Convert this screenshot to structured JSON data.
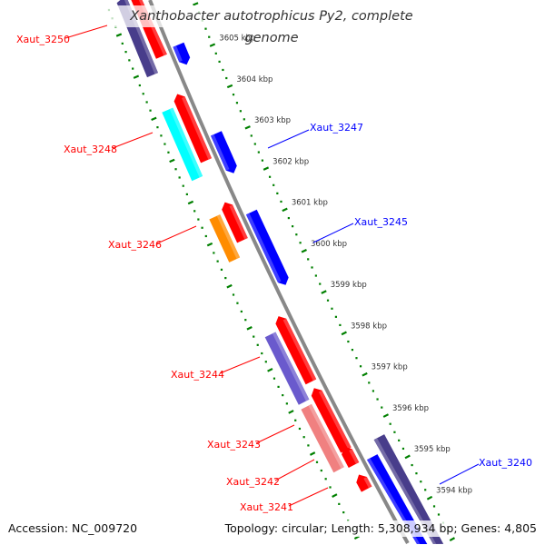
{
  "title": "Xanthobacter autotrophicus Py2, complete genome",
  "footer": {
    "accession": "Accession: NC_009720",
    "topology": "Topology: circular; Length: 5,308,934 bp; Genes: 4,805"
  },
  "colors": {
    "backbone": "#888888",
    "ticks": "#008000",
    "tick_label": "#333333",
    "forward_label": "#ff0000",
    "reverse_label": "#0000ff"
  },
  "ticks": {
    "unit": "kbp",
    "major": [
      3605,
      3604,
      3603,
      3602,
      3601,
      3600,
      3599,
      3598,
      3597,
      3596,
      3595,
      3594
    ],
    "labels": [
      "3605 kbp",
      "3604 kbp",
      "3603 kbp",
      "3602 kbp",
      "3601 kbp",
      "3600 kbp",
      "3599 kbp",
      "3598 kbp",
      "3597 kbp",
      "3596 kbp",
      "3595 kbp",
      "3594 kbp"
    ],
    "minor_step_kbp": 0.2,
    "range_kbp": [
      3593.0,
      3606.8
    ]
  },
  "genes": [
    {
      "track": "fwd",
      "start": 3605.2,
      "end": 3606.8,
      "strand": 1,
      "color": "#ff0000"
    },
    {
      "track": "fwd-cog",
      "start": 3604.9,
      "end": 3606.8,
      "strand": 1,
      "color": "#483d8b"
    },
    {
      "track": "rev",
      "start": 3604.82,
      "end": 3605.3,
      "strand": -1,
      "color": "#0000ff"
    },
    {
      "track": "fwd",
      "start": 3602.7,
      "end": 3604.3,
      "strand": 1,
      "color": "#ff0000"
    },
    {
      "track": "fwd-cog",
      "start": 3602.42,
      "end": 3604.06,
      "strand": 0,
      "color": "#00ffff"
    },
    {
      "track": "rev",
      "start": 3602.2,
      "end": 3603.16,
      "strand": -1,
      "color": "#0000ff"
    },
    {
      "track": "fwd",
      "start": 3600.78,
      "end": 3601.7,
      "strand": 1,
      "color": "#ff0000"
    },
    {
      "track": "fwd-cog",
      "start": 3600.47,
      "end": 3601.5,
      "strand": 0,
      "color": "#ff8c00"
    },
    {
      "track": "rev",
      "start": 3599.5,
      "end": 3601.26,
      "strand": -1,
      "color": "#0000ff"
    },
    {
      "track": "fwd",
      "start": 3597.38,
      "end": 3598.96,
      "strand": 1,
      "color": "#ff0000"
    },
    {
      "track": "fwd-cog",
      "start": 3597.06,
      "end": 3598.68,
      "strand": 0,
      "color": "#6a5acd"
    },
    {
      "track": "fwd",
      "start": 3595.74,
      "end": 3597.23,
      "strand": 1,
      "color": "#ff0000"
    },
    {
      "track": "fwd-cog",
      "start": 3595.44,
      "end": 3596.95,
      "strand": 0,
      "color": "#f08080"
    },
    {
      "track": "fwd",
      "start": 3595.38,
      "end": 3595.82,
      "strand": 1,
      "color": "#ff0000"
    },
    {
      "track": "fwd",
      "start": 3594.8,
      "end": 3595.15,
      "strand": 1,
      "color": "#ff0000"
    },
    {
      "track": "rev",
      "start": 3593.0,
      "end": 3595.35,
      "strand": -1,
      "color": "#0000ff"
    },
    {
      "track": "rev-cog",
      "start": 3593.0,
      "end": 3595.66,
      "strand": 0,
      "color": "#483d8b"
    }
  ],
  "gene_labels": [
    {
      "text": "Xaut_3250",
      "strand": "forward"
    },
    {
      "text": "Xaut_3248",
      "strand": "forward"
    },
    {
      "text": "Xaut_3246",
      "strand": "forward"
    },
    {
      "text": "Xaut_3244",
      "strand": "forward"
    },
    {
      "text": "Xaut_3243",
      "strand": "forward"
    },
    {
      "text": "Xaut_3242",
      "strand": "forward"
    },
    {
      "text": "Xaut_3241",
      "strand": "forward"
    },
    {
      "text": "Xaut_3247",
      "strand": "reverse"
    },
    {
      "text": "Xaut_3245",
      "strand": "reverse"
    },
    {
      "text": "Xaut_3240",
      "strand": "reverse"
    }
  ]
}
